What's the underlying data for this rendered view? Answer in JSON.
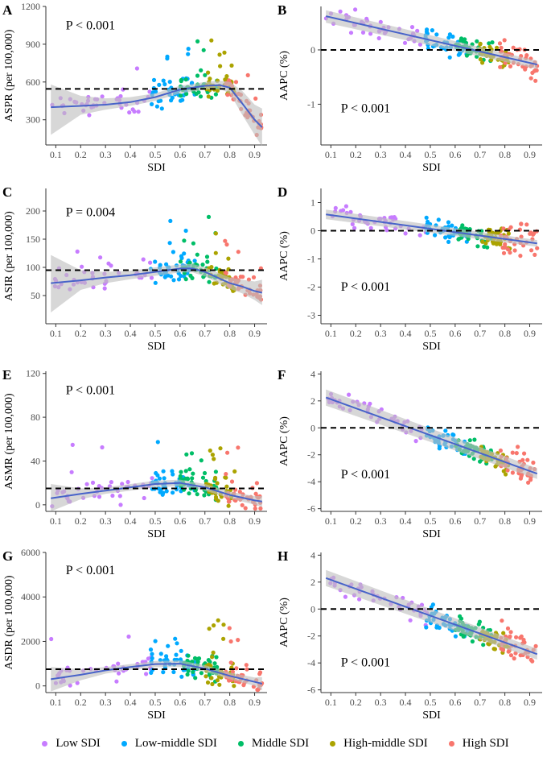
{
  "legend": {
    "items": [
      {
        "label": "Low SDI",
        "color": "#C77CFF"
      },
      {
        "label": "Low-middle SDI",
        "color": "#00A9FF"
      },
      {
        "label": "Middle SDI",
        "color": "#00BE67"
      },
      {
        "label": "High-middle SDI",
        "color": "#ABA300"
      },
      {
        "label": "High SDI",
        "color": "#F8766D"
      }
    ]
  },
  "style": {
    "fit_color": "#4863C9",
    "band_color": "#BEBEBE",
    "reference_line": "dashed black"
  },
  "chart_data": [
    {
      "panel": "A",
      "type": "scatter",
      "xlabel": "SDI",
      "ylabel": "ASPR (per 100,000)",
      "xlim": [
        0.06,
        0.95
      ],
      "ylim": [
        100,
        1200
      ],
      "xticks": [
        0.1,
        0.2,
        0.3,
        0.4,
        0.5,
        0.6,
        0.7,
        0.8,
        0.9
      ],
      "yticks": [
        300,
        600,
        900,
        1200
      ],
      "annotation": "P < 0.001",
      "reference_line_y": 545,
      "fit": {
        "x": [
          0.08,
          0.2,
          0.3,
          0.4,
          0.5,
          0.6,
          0.7,
          0.76,
          0.8,
          0.85,
          0.9,
          0.93
        ],
        "y": [
          400,
          410,
          420,
          440,
          480,
          540,
          570,
          575,
          555,
          430,
          300,
          240
        ]
      },
      "band": {
        "upper": [
          580,
          490,
          470,
          480,
          510,
          570,
          600,
          610,
          600,
          530,
          420,
          390
        ],
        "lower": [
          180,
          340,
          380,
          410,
          450,
          510,
          540,
          545,
          510,
          340,
          180,
          90
        ]
      }
    },
    {
      "panel": "B",
      "type": "scatter",
      "xlabel": "SDI",
      "ylabel": "AAPC (%)",
      "xlim": [
        0.06,
        0.95
      ],
      "ylim": [
        -1.75,
        0.8
      ],
      "xticks": [
        0.1,
        0.2,
        0.3,
        0.4,
        0.5,
        0.6,
        0.7,
        0.8,
        0.9
      ],
      "yticks": [
        -1,
        0
      ],
      "annotation": "P < 0.001",
      "reference_line_y": 0,
      "fit": {
        "x": [
          0.08,
          0.93
        ],
        "y": [
          0.62,
          -0.27
        ]
      },
      "band": {
        "upper": [
          0.73,
          -0.2
        ],
        "lower": [
          0.5,
          -0.35
        ]
      }
    },
    {
      "panel": "C",
      "type": "scatter",
      "xlabel": "SDI",
      "ylabel": "ASIR (per 100,000)",
      "xlim": [
        0.06,
        0.95
      ],
      "ylim": [
        0,
        240
      ],
      "xticks": [
        0.1,
        0.2,
        0.3,
        0.4,
        0.5,
        0.6,
        0.7,
        0.8,
        0.9
      ],
      "yticks": [
        50,
        100,
        150,
        200
      ],
      "annotation": "P = 0.004",
      "reference_line_y": 95,
      "fit": {
        "x": [
          0.08,
          0.2,
          0.3,
          0.4,
          0.5,
          0.6,
          0.65,
          0.7,
          0.75,
          0.8,
          0.85,
          0.9,
          0.93
        ],
        "y": [
          72,
          77,
          82,
          86,
          92,
          98,
          98,
          92,
          82,
          72,
          66,
          58,
          55
        ]
      },
      "band": {
        "upper": [
          122,
          95,
          92,
          94,
          100,
          105,
          106,
          100,
          91,
          82,
          78,
          75,
          78
        ],
        "lower": [
          20,
          60,
          72,
          79,
          85,
          91,
          91,
          84,
          73,
          62,
          54,
          42,
          33
        ]
      }
    },
    {
      "panel": "D",
      "type": "scatter",
      "xlabel": "SDI",
      "ylabel": "AAPC (%)",
      "xlim": [
        0.06,
        0.95
      ],
      "ylim": [
        -3.3,
        1.5
      ],
      "xticks": [
        0.1,
        0.2,
        0.3,
        0.4,
        0.5,
        0.6,
        0.7,
        0.8,
        0.9
      ],
      "yticks": [
        -3,
        -2,
        -1,
        0,
        1
      ],
      "annotation": "P < 0.001",
      "reference_line_y": 0,
      "fit": {
        "x": [
          0.08,
          0.93
        ],
        "y": [
          0.58,
          -0.45
        ]
      },
      "band": {
        "upper": [
          0.75,
          -0.33
        ],
        "lower": [
          0.41,
          -0.57
        ]
      }
    },
    {
      "panel": "E",
      "type": "scatter",
      "xlabel": "SDI",
      "ylabel": "ASMR (per 100,000)",
      "xlim": [
        0.06,
        0.95
      ],
      "ylim": [
        -6,
        122
      ],
      "xticks": [
        0.1,
        0.2,
        0.3,
        0.4,
        0.5,
        0.6,
        0.7,
        0.8,
        0.9
      ],
      "yticks": [
        0,
        40,
        80,
        120
      ],
      "annotation": "P < 0.001",
      "reference_line_y": 15,
      "fit": {
        "x": [
          0.08,
          0.2,
          0.3,
          0.4,
          0.5,
          0.6,
          0.7,
          0.8,
          0.9,
          0.93
        ],
        "y": [
          6,
          10,
          13,
          16,
          19,
          20,
          16,
          9,
          4,
          3
        ]
      },
      "band": {
        "upper": [
          19,
          15,
          16,
          19,
          22,
          23,
          19,
          12,
          8,
          8
        ],
        "lower": [
          -6,
          5,
          10,
          13,
          16,
          17,
          13,
          6,
          0,
          -2
        ]
      }
    },
    {
      "panel": "F",
      "type": "scatter",
      "xlabel": "SDI",
      "ylabel": "AAPC (%)",
      "xlim": [
        0.06,
        0.95
      ],
      "ylim": [
        -6.2,
        4.2
      ],
      "xticks": [
        0.1,
        0.2,
        0.3,
        0.4,
        0.5,
        0.6,
        0.7,
        0.8,
        0.9
      ],
      "yticks": [
        -6,
        -4,
        -2,
        0,
        2,
        4
      ],
      "annotation": "P < 0.001",
      "reference_line_y": 0,
      "fit": {
        "x": [
          0.08,
          0.93
        ],
        "y": [
          2.25,
          -3.4
        ]
      },
      "band": {
        "upper": [
          2.85,
          -3.0
        ],
        "lower": [
          1.65,
          -3.8
        ]
      }
    },
    {
      "panel": "G",
      "type": "scatter",
      "xlabel": "SDI",
      "ylabel": "ASDR (per 100,000)",
      "xlim": [
        0.06,
        0.95
      ],
      "ylim": [
        -300,
        6000
      ],
      "xticks": [
        0.1,
        0.2,
        0.3,
        0.4,
        0.5,
        0.6,
        0.7,
        0.8,
        0.9
      ],
      "yticks": [
        0,
        2000,
        4000,
        6000
      ],
      "annotation": "P < 0.001",
      "reference_line_y": 750,
      "fit": {
        "x": [
          0.08,
          0.2,
          0.3,
          0.4,
          0.5,
          0.6,
          0.7,
          0.8,
          0.9,
          0.93
        ],
        "y": [
          300,
          500,
          700,
          850,
          980,
          1000,
          780,
          450,
          180,
          100
        ]
      },
      "band": {
        "upper": [
          850,
          750,
          850,
          980,
          1120,
          1150,
          930,
          600,
          380,
          400
        ],
        "lower": [
          -250,
          250,
          550,
          720,
          840,
          850,
          630,
          300,
          0,
          -200
        ]
      }
    },
    {
      "panel": "H",
      "type": "scatter",
      "xlabel": "SDI",
      "ylabel": "AAPC (%)",
      "xlim": [
        0.06,
        0.95
      ],
      "ylim": [
        -6.2,
        4.2
      ],
      "xticks": [
        0.1,
        0.2,
        0.3,
        0.4,
        0.5,
        0.6,
        0.7,
        0.8,
        0.9
      ],
      "yticks": [
        -6,
        -4,
        -2,
        0,
        2,
        4
      ],
      "annotation": "P < 0.001",
      "reference_line_y": 0,
      "fit": {
        "x": [
          0.08,
          0.93
        ],
        "y": [
          2.3,
          -3.35
        ]
      },
      "band": {
        "upper": [
          2.9,
          -2.95
        ],
        "lower": [
          1.7,
          -3.75
        ]
      }
    }
  ]
}
